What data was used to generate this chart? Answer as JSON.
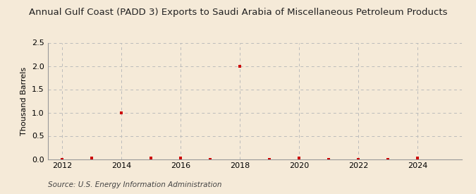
{
  "title": "Annual Gulf Coast (PADD 3) Exports to Saudi Arabia of Miscellaneous Petroleum Products",
  "ylabel": "Thousand Barrels",
  "source": "Source: U.S. Energy Information Administration",
  "background_color": "#f5ead8",
  "years": [
    2012,
    2013,
    2014,
    2015,
    2016,
    2017,
    2018,
    2019,
    2020,
    2021,
    2022,
    2023,
    2024
  ],
  "values": [
    0,
    0.02,
    1.0,
    0.02,
    0.02,
    0,
    2.0,
    0,
    0.02,
    0,
    0,
    0,
    0.02
  ],
  "xlim": [
    2011.5,
    2025.5
  ],
  "ylim": [
    0,
    2.5
  ],
  "yticks": [
    0.0,
    0.5,
    1.0,
    1.5,
    2.0,
    2.5
  ],
  "xticks": [
    2012,
    2014,
    2016,
    2018,
    2020,
    2022,
    2024
  ],
  "marker_color": "#cc0000",
  "marker_size": 3.5,
  "grid_color": "#bbbbbb",
  "title_fontsize": 9.5,
  "label_fontsize": 8,
  "tick_fontsize": 8,
  "source_fontsize": 7.5
}
